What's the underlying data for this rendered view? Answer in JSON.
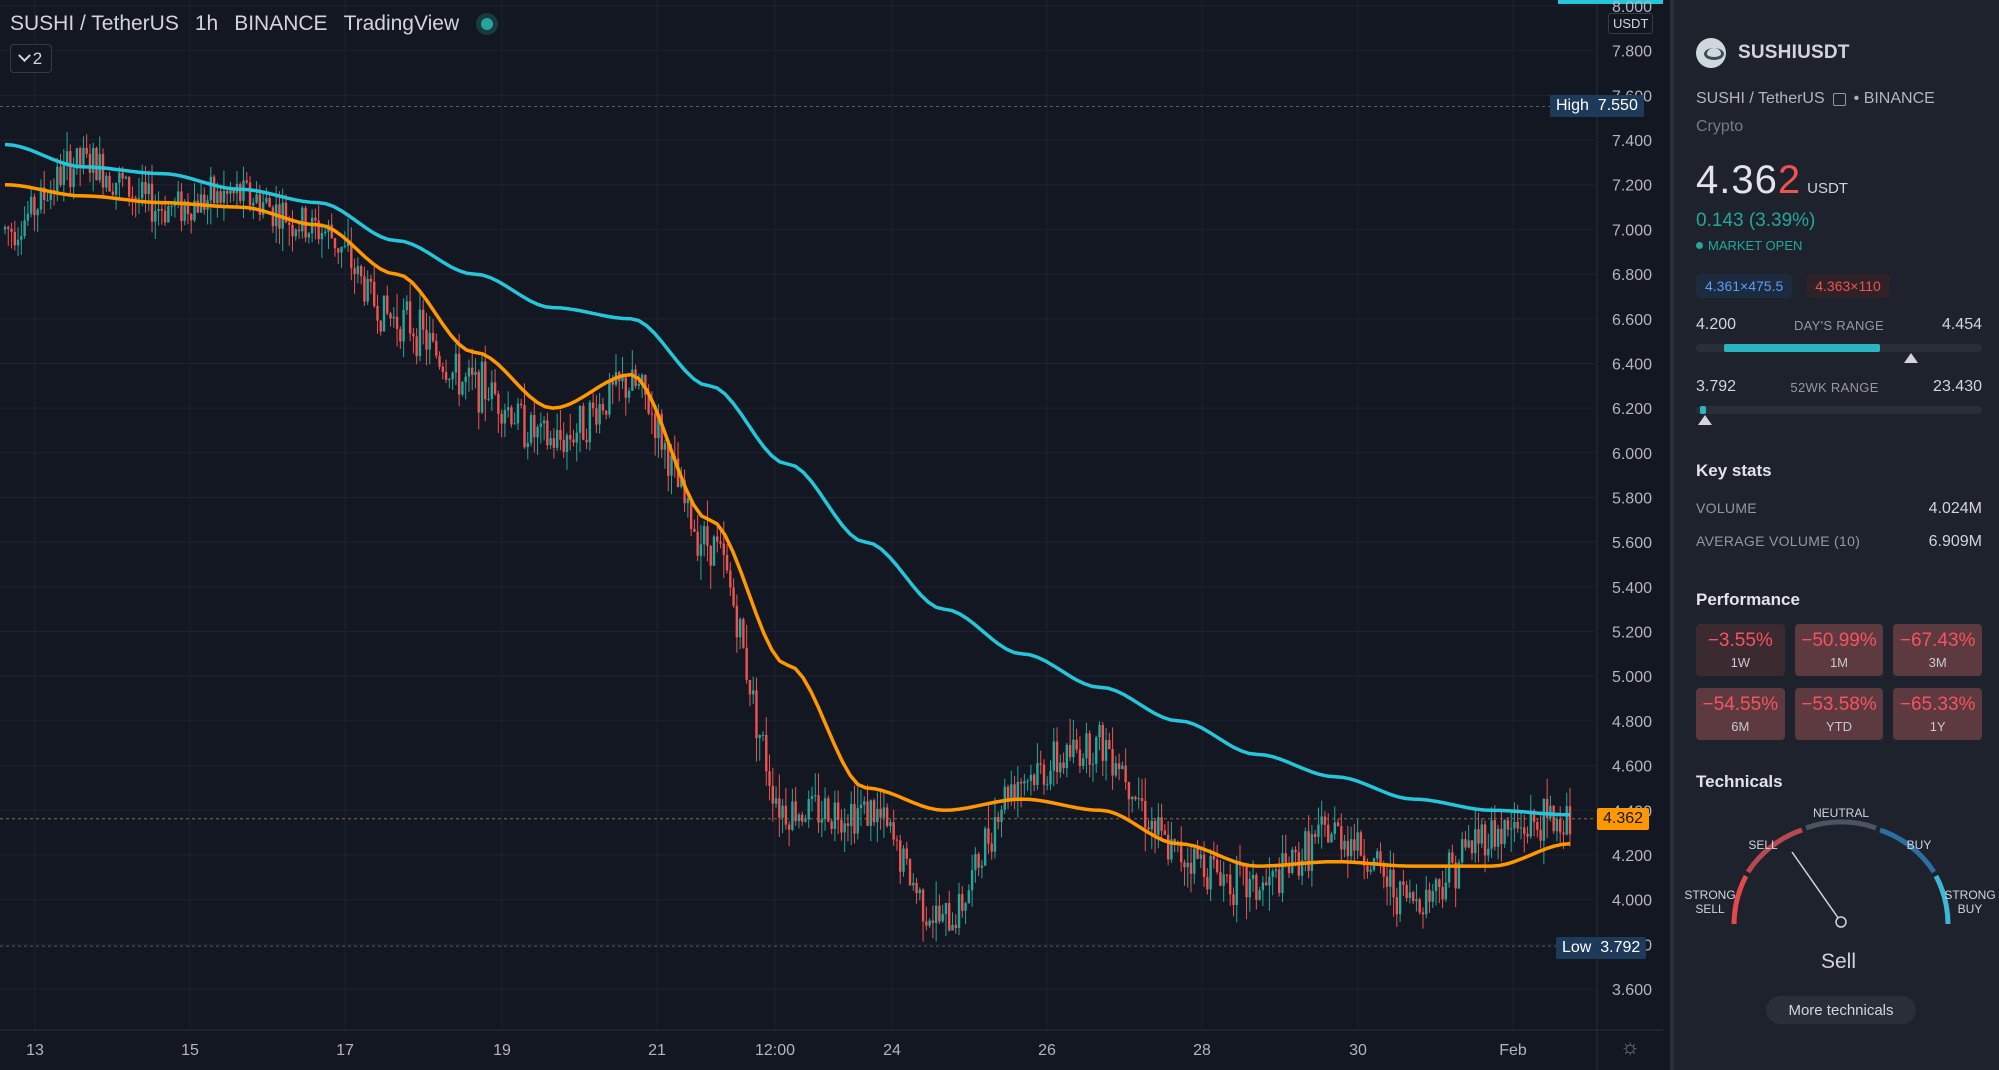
{
  "header": {
    "symbol": "SUSHI / TetherUS",
    "interval": "1h",
    "exchange": "BINANCE",
    "source": "TradingView",
    "collapse_count": "2"
  },
  "axis": {
    "currency": "USDT",
    "price_labels": [
      "8.000",
      "7.800",
      "7.600",
      "7.400",
      "7.200",
      "7.000",
      "6.800",
      "6.600",
      "6.400",
      "6.200",
      "6.000",
      "5.800",
      "5.600",
      "5.400",
      "5.200",
      "5.000",
      "4.800",
      "4.600",
      "4.400",
      "4.200",
      "4.000",
      "3.800",
      "3.600"
    ],
    "time_labels": [
      "13",
      "15",
      "17",
      "19",
      "21",
      "12:00",
      "24",
      "26",
      "28",
      "30",
      "Feb"
    ]
  },
  "markers": {
    "high_label": "High",
    "high_value": "7.550",
    "low_label": "Low",
    "low_value": "3.792",
    "last_value": "4.362"
  },
  "colors": {
    "background": "#131722",
    "ma_fast": "#ff9800",
    "ma_slow": "#26c6da",
    "up": "#26a69a",
    "down": "#ef5350",
    "last_price_tag": "#ff9800",
    "high_low_tag": "#1e3a5a"
  },
  "chart_data": {
    "type": "candlestick",
    "interval": "1h",
    "xlabels": [
      "13",
      "15",
      "17",
      "19",
      "21",
      "12:00",
      "24",
      "26",
      "28",
      "30",
      "Feb"
    ],
    "ylim": [
      3.5,
      8.0
    ],
    "high": 7.55,
    "low": 3.792,
    "last": 4.362,
    "close_path": {
      "x": [
        "13",
        "",
        "15",
        "",
        "17",
        "",
        "19",
        "",
        "21",
        "12:00",
        "",
        "24",
        "",
        "26",
        "",
        "28",
        "",
        "30",
        "",
        "Feb",
        ""
      ],
      "values": [
        7.0,
        7.3,
        7.1,
        7.15,
        7.0,
        6.6,
        6.3,
        6.05,
        6.3,
        5.6,
        4.4,
        4.4,
        3.9,
        4.55,
        4.7,
        4.2,
        4.05,
        4.3,
        4.0,
        4.3,
        4.36
      ]
    },
    "series": [
      {
        "values": [
          7.2,
          7.15,
          7.12,
          7.1,
          7.02,
          6.8,
          6.45,
          6.2,
          6.35,
          5.7,
          5.05,
          4.5,
          4.4,
          4.45,
          4.4,
          4.25,
          4.15,
          4.17,
          4.15,
          4.15,
          4.25
        ]
      },
      {
        "values": [
          7.38,
          7.28,
          7.25,
          7.18,
          7.12,
          6.95,
          6.8,
          6.65,
          6.6,
          6.3,
          5.95,
          5.6,
          5.3,
          5.1,
          4.95,
          4.8,
          4.65,
          4.55,
          4.45,
          4.4,
          4.38
        ]
      }
    ]
  },
  "panel": {
    "symbol": "SUSHIUSDT",
    "pair": "SUSHI / TetherUS",
    "exchange": "• BINANCE",
    "category": "Crypto",
    "price_main": "4.36",
    "price_last_digit": "2",
    "price_unit": "USDT",
    "change": "0.143 (3.39%)",
    "market_status": "MARKET OPEN",
    "bid": "4.361×475.5",
    "ask": "4.363×110",
    "days_range": {
      "low": "4.200",
      "title": "DAY'S RANGE",
      "high": "4.454",
      "position": 0.75
    },
    "wk52_range": {
      "low": "3.792",
      "title": "52WK RANGE",
      "high": "23.430",
      "position": 0.03
    },
    "key_stats_title": "Key stats",
    "volume_label": "VOLUME",
    "volume_value": "4.024M",
    "avg_volume_label": "AVERAGE VOLUME (10)",
    "avg_volume_value": "6.909M",
    "performance_title": "Performance",
    "performance": [
      {
        "value": "−3.55%",
        "period": "1W"
      },
      {
        "value": "−50.99%",
        "period": "1M"
      },
      {
        "value": "−67.43%",
        "period": "3M"
      },
      {
        "value": "−54.55%",
        "period": "6M"
      },
      {
        "value": "−53.58%",
        "period": "YTD"
      },
      {
        "value": "−65.33%",
        "period": "1Y"
      }
    ],
    "technicals_title": "Technicals",
    "gauge": {
      "strong_sell": "STRONG SELL",
      "sell": "SELL",
      "neutral": "NEUTRAL",
      "buy": "BUY",
      "strong_buy": "STRONG BUY",
      "result": "Sell"
    },
    "more_button": "More technicals"
  }
}
